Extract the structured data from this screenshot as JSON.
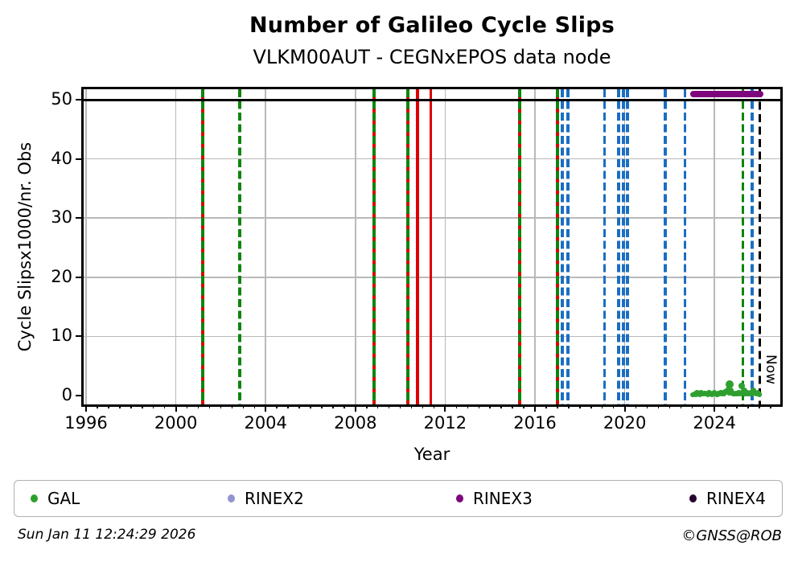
{
  "title": "Number of Galileo Cycle Slips",
  "subtitle": "VLKM00AUT - CEGNxEPOS data node",
  "footer": {
    "timestamp": "Sun Jan 11 12:24:29 2026",
    "copyright": "©GNSS@ROB"
  },
  "colors": {
    "gal_green": "#2fa02f",
    "line_green": "#0e850e",
    "line_red": "#dd0000",
    "line_blue": "#1b6ec2",
    "rinex2": "#9393d2",
    "rinex3": "#7d067d",
    "rinex4": "#26052e",
    "grid": "#b9b9b9",
    "now_black": "#000000"
  },
  "legend": {
    "items": [
      {
        "label": "GAL",
        "color_key": "gal_green"
      },
      {
        "label": "RINEX2",
        "color_key": "rinex2"
      },
      {
        "label": "RINEX3",
        "color_key": "rinex3"
      },
      {
        "label": "RINEX4",
        "color_key": "rinex4"
      }
    ]
  },
  "chart_data": {
    "type": "scatter",
    "title": "Number of Galileo Cycle Slips",
    "subtitle": "VLKM00AUT - CEGNxEPOS data node",
    "xlabel": "Year",
    "ylabel": "Cycle Slipsx1000/nr. Obs",
    "xlim": [
      1995.9,
      2026.9
    ],
    "ylim": [
      -1.5,
      51.8
    ],
    "x_major_ticks": [
      1996,
      2000,
      2004,
      2008,
      2012,
      2016,
      2020,
      2024
    ],
    "x_minor_step": 0.5,
    "y_ticks": [
      0,
      10,
      20,
      30,
      40,
      50
    ],
    "grid": true,
    "legend_position": "bottom",
    "threshold_line_y": 50,
    "now_line": {
      "label": "Now",
      "year": 2026.03
    },
    "event_lines": {
      "red_solid_years": [
        2001.2,
        2008.84,
        2010.34,
        2010.77,
        2011.35,
        2015.32,
        2017.0
      ],
      "green_dashed_years": [
        2001.2,
        2002.85,
        2008.84,
        2010.34,
        2015.32,
        2017.0,
        2025.27
      ],
      "blue_dashed_years": [
        2017.22,
        2017.47,
        2019.1,
        2019.73,
        2019.94,
        2020.12,
        2021.8,
        2022.69,
        2025.68
      ]
    },
    "rinex3_band": {
      "name": "RINEX3",
      "start": 2023.07,
      "end": 2026.03,
      "value": 50.9
    },
    "gal_series": {
      "name": "GAL",
      "points": [
        [
          2023.05,
          0.15
        ],
        [
          2023.1,
          0.3
        ],
        [
          2023.16,
          0.2
        ],
        [
          2023.22,
          0.45
        ],
        [
          2023.28,
          0.3
        ],
        [
          2023.34,
          0.2
        ],
        [
          2023.4,
          0.5
        ],
        [
          2023.46,
          0.35
        ],
        [
          2023.52,
          0.25
        ],
        [
          2023.58,
          0.4
        ],
        [
          2023.64,
          0.3
        ],
        [
          2023.7,
          0.2
        ],
        [
          2023.76,
          0.45
        ],
        [
          2023.82,
          0.3
        ],
        [
          2023.88,
          0.2
        ],
        [
          2023.94,
          0.35
        ],
        [
          2024.0,
          0.5
        ],
        [
          2024.06,
          0.3
        ],
        [
          2024.12,
          0.2
        ],
        [
          2024.18,
          0.4
        ],
        [
          2024.24,
          0.3
        ],
        [
          2024.3,
          0.55
        ],
        [
          2024.36,
          0.35
        ],
        [
          2024.42,
          0.25
        ],
        [
          2024.48,
          0.6
        ],
        [
          2024.54,
          0.8
        ],
        [
          2024.6,
          1.0
        ],
        [
          2024.66,
          0.45
        ],
        [
          2024.68,
          1.9,
          10
        ],
        [
          2024.72,
          0.9
        ],
        [
          2024.78,
          0.5
        ],
        [
          2024.84,
          0.35
        ],
        [
          2024.9,
          0.25
        ],
        [
          2024.96,
          0.4
        ],
        [
          2025.02,
          0.3
        ],
        [
          2025.08,
          0.5
        ],
        [
          2025.14,
          0.35
        ],
        [
          2025.2,
          1.6,
          8
        ],
        [
          2025.26,
          0.45
        ],
        [
          2025.32,
          0.75,
          8
        ],
        [
          2025.38,
          0.3
        ],
        [
          2025.44,
          0.5
        ],
        [
          2025.5,
          0.35
        ],
        [
          2025.56,
          0.25
        ],
        [
          2025.62,
          0.45
        ],
        [
          2025.68,
          0.3
        ],
        [
          2025.74,
          0.9
        ],
        [
          2025.8,
          0.4
        ],
        [
          2025.86,
          0.3
        ],
        [
          2025.92,
          0.5
        ],
        [
          2025.97,
          0.35
        ],
        [
          2026.0,
          0.2
        ]
      ]
    }
  }
}
